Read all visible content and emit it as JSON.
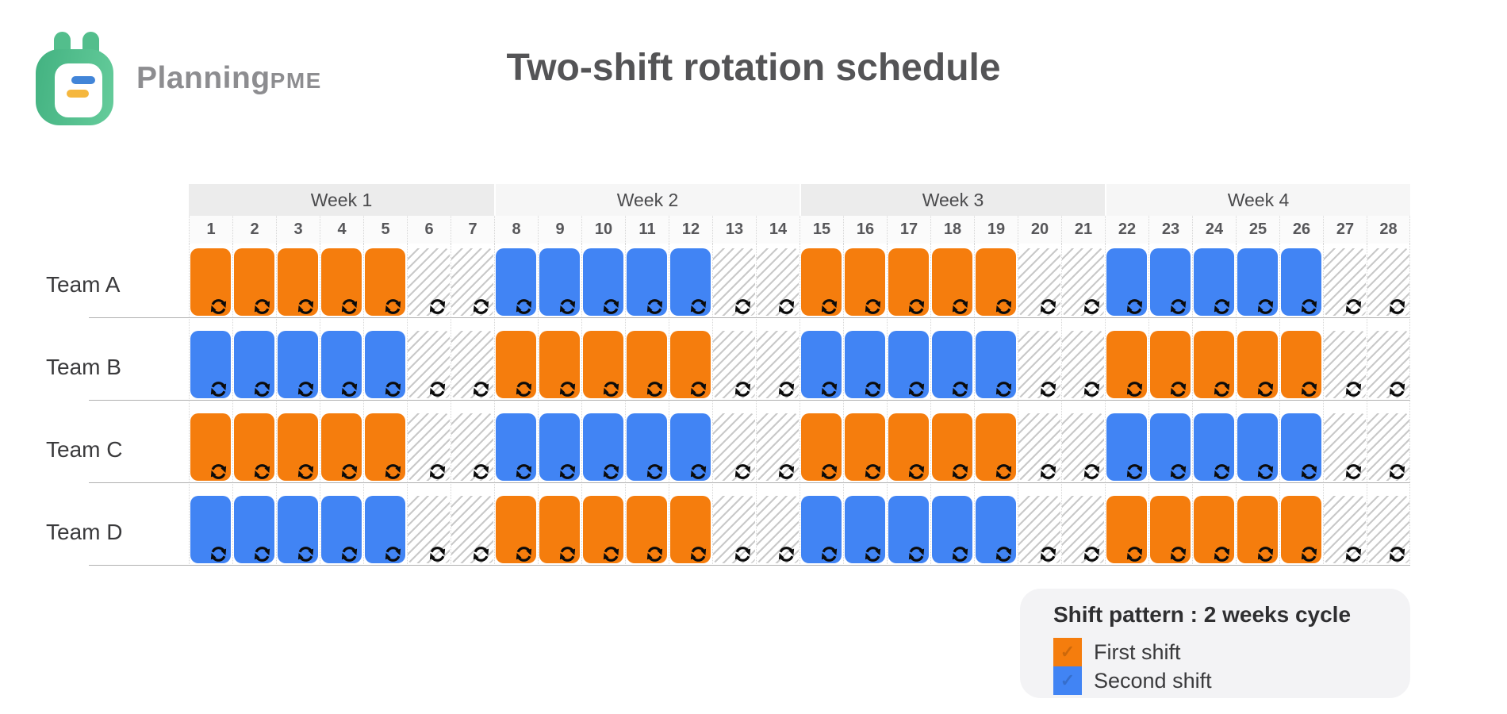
{
  "brand": {
    "name_main": "Planning",
    "name_suffix": "PME"
  },
  "title": "Two-shift rotation schedule",
  "colors": {
    "first_shift": "#F57D0D",
    "second_shift": "#4184F4",
    "week_band_odd": "#ECECEC",
    "week_band_even": "#F6F6F6",
    "hatch_stripe": "#C9C9C9",
    "row_separator": "#B0B0B0",
    "column_dotted": "#D6D6D6",
    "legend_bg": "#F3F3F5",
    "icon": "#0B0B0B",
    "logo_green": "#53BE8C",
    "logo_blue": "#4285D8",
    "logo_yellow": "#F5B73E"
  },
  "schedule": {
    "weeks": [
      {
        "label": "Week 1",
        "days": [
          1,
          2,
          3,
          4,
          5,
          6,
          7
        ]
      },
      {
        "label": "Week 2",
        "days": [
          8,
          9,
          10,
          11,
          12,
          13,
          14
        ]
      },
      {
        "label": "Week 3",
        "days": [
          15,
          16,
          17,
          18,
          19,
          20,
          21
        ]
      },
      {
        "label": "Week 4",
        "days": [
          22,
          23,
          24,
          25,
          26,
          27,
          28
        ]
      }
    ],
    "workdays_per_week": 5,
    "teams": [
      {
        "name": "Team A",
        "week_shifts": [
          "first",
          "second",
          "first",
          "second"
        ]
      },
      {
        "name": "Team B",
        "week_shifts": [
          "second",
          "first",
          "second",
          "first"
        ]
      },
      {
        "name": "Team C",
        "week_shifts": [
          "first",
          "second",
          "first",
          "second"
        ]
      },
      {
        "name": "Team D",
        "week_shifts": [
          "second",
          "first",
          "second",
          "first"
        ]
      }
    ]
  },
  "legend": {
    "title": "Shift pattern : 2 weeks cycle",
    "items": [
      {
        "label": "First shift",
        "color_key": "first_shift"
      },
      {
        "label": "Second shift",
        "color_key": "second_shift"
      }
    ]
  }
}
